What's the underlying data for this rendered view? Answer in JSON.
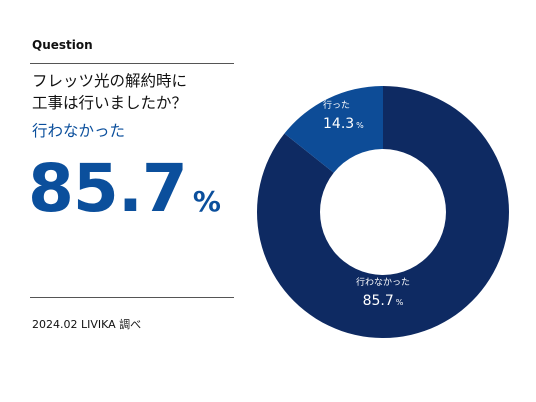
{
  "header": {
    "label": "Question"
  },
  "question": {
    "line1": "フレッツ光の解約時に",
    "line2": "工事は行いましたか？"
  },
  "highlight": {
    "answer": "行わなかった",
    "value": "85.7",
    "unit": "%"
  },
  "footer": {
    "source": "2024.02 LIVIKA 調べ"
  },
  "colors": {
    "major": "#0e2a62",
    "minor": "#0d4c97",
    "accent": "#0b4f9c"
  },
  "chart_data": {
    "type": "pie",
    "style": "donut",
    "categories": [
      "行わなかった",
      "行った"
    ],
    "values": [
      85.7,
      14.3
    ],
    "unit": "%",
    "labels": [
      {
        "name": "行わなかった",
        "value": "85.7",
        "unit": "%"
      },
      {
        "name": "行った",
        "value": "14.3",
        "unit": "%"
      }
    ]
  }
}
